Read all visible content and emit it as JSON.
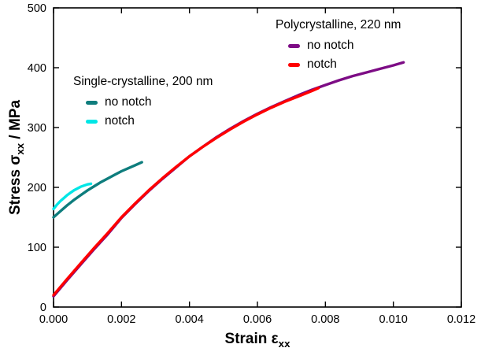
{
  "chart_data": {
    "type": "line",
    "title": "",
    "xlabel": {
      "prefix": "Strain ε",
      "sub": "xx"
    },
    "ylabel": {
      "prefix": "Stress σ",
      "sub": "xx",
      "suffix": " / MPa"
    },
    "x_axis": {
      "min": 0,
      "max": 0.012,
      "tick_values": [
        0,
        0.002,
        0.004,
        0.006,
        0.008,
        0.01,
        0.012
      ],
      "tick_labels": [
        "0.000",
        "0.002",
        "0.004",
        "0.006",
        "0.008",
        "0.010",
        "0.012"
      ]
    },
    "y_axis": {
      "min": 0,
      "max": 500,
      "tick_values": [
        0,
        100,
        200,
        300,
        400,
        500
      ],
      "tick_labels": [
        "0",
        "100",
        "200",
        "300",
        "400",
        "500"
      ]
    },
    "grid": false,
    "legend_position": "inside-top",
    "series": [
      {
        "name": "Polycrystalline, 220 nm - no notch",
        "color": "#7d0c85",
        "points": [
          [
            0.0,
            18
          ],
          [
            0.0004,
            45
          ],
          [
            0.0008,
            71
          ],
          [
            0.0012,
            97
          ],
          [
            0.0016,
            122
          ],
          [
            0.002,
            149
          ],
          [
            0.0024,
            172
          ],
          [
            0.0028,
            194
          ],
          [
            0.0032,
            214
          ],
          [
            0.0036,
            233
          ],
          [
            0.004,
            252
          ],
          [
            0.0044,
            268
          ],
          [
            0.0048,
            284
          ],
          [
            0.0052,
            298
          ],
          [
            0.0056,
            311
          ],
          [
            0.006,
            323
          ],
          [
            0.0064,
            334
          ],
          [
            0.0068,
            344
          ],
          [
            0.0072,
            354
          ],
          [
            0.0076,
            363
          ],
          [
            0.008,
            371
          ],
          [
            0.0084,
            379
          ],
          [
            0.0088,
            386
          ],
          [
            0.0092,
            392
          ],
          [
            0.0096,
            398
          ],
          [
            0.01,
            404
          ],
          [
            0.0103,
            409
          ]
        ]
      },
      {
        "name": "Polycrystalline, 220 nm - notch",
        "color": "#ff0000",
        "points": [
          [
            0.0,
            20
          ],
          [
            0.0004,
            47
          ],
          [
            0.0008,
            73
          ],
          [
            0.0012,
            99
          ],
          [
            0.0016,
            124
          ],
          [
            0.002,
            150
          ],
          [
            0.0024,
            173
          ],
          [
            0.0028,
            195
          ],
          [
            0.0032,
            215
          ],
          [
            0.0036,
            234
          ],
          [
            0.004,
            252
          ],
          [
            0.0044,
            268
          ],
          [
            0.0048,
            283
          ],
          [
            0.0052,
            297
          ],
          [
            0.0056,
            310
          ],
          [
            0.006,
            322
          ],
          [
            0.0064,
            333
          ],
          [
            0.0068,
            343
          ],
          [
            0.0072,
            352
          ],
          [
            0.0076,
            361
          ],
          [
            0.0078,
            366
          ]
        ]
      },
      {
        "name": "Single-crystalline, 200 nm - no notch",
        "color": "#0e7d7d",
        "points": [
          [
            0.0,
            150
          ],
          [
            0.0002,
            160
          ],
          [
            0.0004,
            170
          ],
          [
            0.0006,
            179
          ],
          [
            0.0008,
            187
          ],
          [
            0.001,
            195
          ],
          [
            0.0012,
            202
          ],
          [
            0.0014,
            209
          ],
          [
            0.0016,
            215
          ],
          [
            0.0018,
            221
          ],
          [
            0.002,
            227
          ],
          [
            0.0022,
            232
          ],
          [
            0.0024,
            237
          ],
          [
            0.0026,
            242
          ]
        ]
      },
      {
        "name": "Single-crystalline, 200 nm - notch",
        "color": "#00e6e6",
        "points": [
          [
            0.0,
            164
          ],
          [
            0.0001,
            171
          ],
          [
            0.0002,
            177
          ],
          [
            0.0003,
            182
          ],
          [
            0.0004,
            187
          ],
          [
            0.0005,
            191
          ],
          [
            0.0006,
            195
          ],
          [
            0.0007,
            198
          ],
          [
            0.0008,
            201
          ],
          [
            0.0009,
            203
          ],
          [
            0.001,
            205
          ],
          [
            0.0011,
            206
          ]
        ]
      }
    ],
    "legend": {
      "groups": [
        {
          "title": "Polycrystalline, 220 nm",
          "entries": [
            {
              "label": "no notch",
              "series": 0
            },
            {
              "label": "notch",
              "series": 1
            }
          ]
        },
        {
          "title": "Single-crystalline, 200 nm",
          "entries": [
            {
              "label": "no notch",
              "series": 2
            },
            {
              "label": "notch",
              "series": 3
            }
          ]
        }
      ]
    }
  }
}
